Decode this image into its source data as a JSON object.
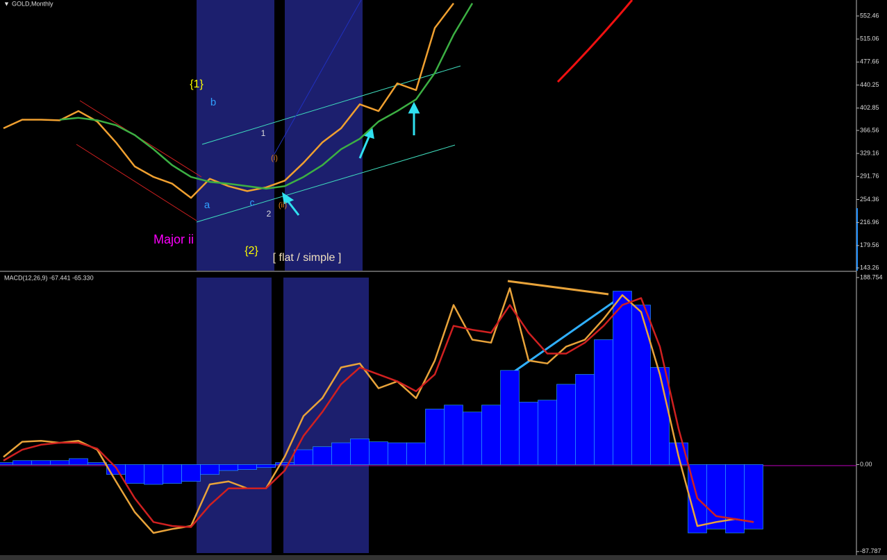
{
  "chart_data": [
    {
      "type": "line",
      "title": "GOLD,Monthly",
      "ylim": [
        138.8,
        578.4
      ],
      "yticks": [
        552.46,
        515.06,
        477.66,
        440.25,
        402.85,
        366.56,
        329.16,
        291.76,
        254.36,
        216.96,
        179.56,
        143.26
      ],
      "series": [
        {
          "color": "#f0a030",
          "type": "line",
          "values": [
            370,
            384,
            384,
            383,
            398,
            381,
            347,
            308,
            291,
            280,
            257,
            288,
            276,
            268,
            274,
            285,
            314,
            347,
            370,
            409,
            398,
            443,
            432,
            533,
            573
          ]
        },
        {
          "color": "#3cb043",
          "type": "line",
          "values": [
            null,
            null,
            null,
            384,
            387,
            383,
            375,
            359,
            336,
            310,
            291,
            283,
            280,
            276,
            272,
            276,
            291,
            310,
            336,
            353,
            381,
            398,
            417,
            460,
            522,
            573
          ]
        }
      ],
      "annotations": [
        "{1}",
        "b",
        "1",
        "(i)",
        "a",
        "c",
        "2",
        "(ii)",
        "Major ii",
        "{2}",
        "[ flat / simple ]"
      ]
    },
    {
      "type": "line",
      "title": "MACD(12,26,9) -67.441 -65.330",
      "ylim": [
        -90,
        193.6
      ],
      "yticks": [
        188.754,
        {
          "value": 0,
          "label": "0.00"
        },
        -87.787
      ],
      "series": [
        {
          "color": "#0000ff",
          "type": "bar",
          "values": [
            2,
            4,
            4,
            4,
            6,
            2,
            -10,
            -19,
            -20,
            -19,
            -17,
            -10,
            -6,
            -5,
            -3,
            2,
            15,
            18,
            22,
            26,
            23,
            22,
            22,
            56,
            60,
            53,
            60,
            95,
            63,
            65,
            81,
            91,
            126,
            175,
            161,
            98,
            22,
            -69,
            -65,
            -69,
            -65
          ]
        },
        {
          "color": "#e8a33a",
          "type": "line",
          "values": [
            7.7,
            23,
            24,
            22,
            24,
            15,
            -17,
            -48,
            -69,
            -65,
            -62,
            -20,
            -17,
            -24,
            -24,
            8,
            49,
            67,
            98,
            102,
            77,
            84,
            67,
            105,
            161,
            126,
            123,
            178,
            105,
            102,
            119,
            126,
            147,
            171,
            154,
            91,
            8,
            -62,
            -58,
            -55,
            -58
          ]
        },
        {
          "color": "#d02020",
          "type": "line",
          "values": [
            4,
            15,
            20,
            22,
            22,
            16,
            -3,
            -34,
            -58,
            -62,
            -63,
            -41,
            -24,
            -24,
            -24,
            -6,
            29,
            53,
            81,
            98,
            91,
            84,
            74,
            91,
            140,
            136,
            133,
            161,
            133,
            112,
            112,
            123,
            140,
            161,
            168,
            119,
            36,
            -34,
            -52,
            -55,
            -58
          ]
        }
      ]
    }
  ]
}
